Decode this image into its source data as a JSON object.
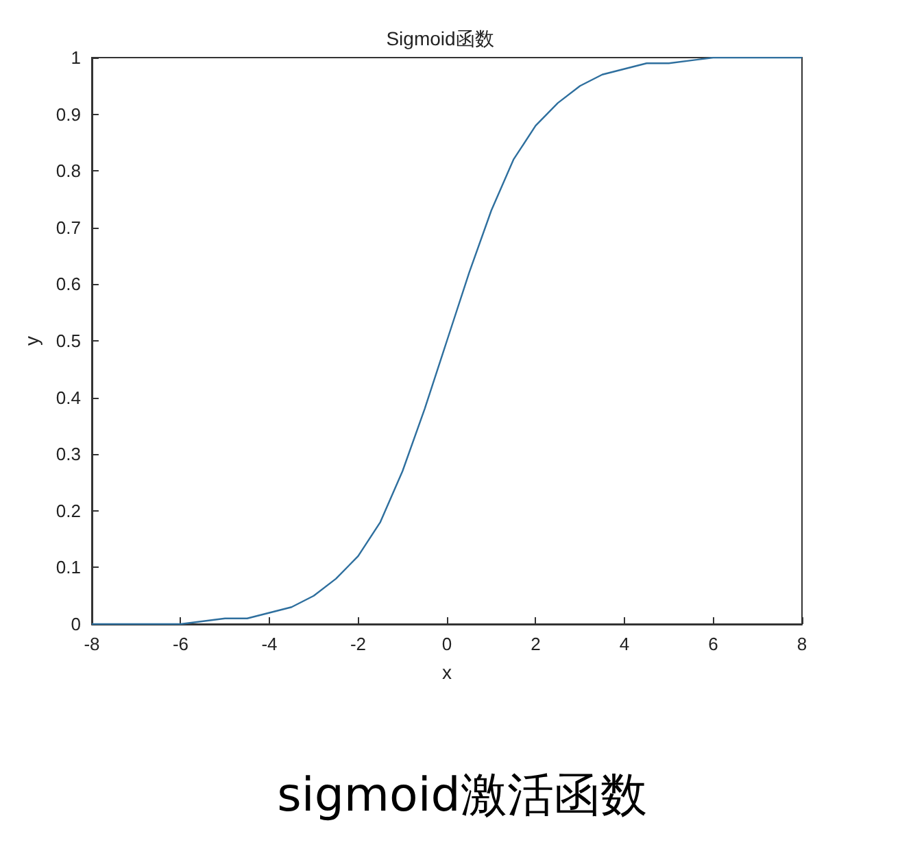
{
  "chart_data": {
    "type": "line",
    "title": "Sigmoid函数",
    "xlabel": "x",
    "ylabel": "y",
    "x": [
      -8,
      -7,
      -6,
      -5,
      -4.5,
      -4,
      -3.5,
      -3,
      -2.5,
      -2,
      -1.5,
      -1,
      -0.5,
      0,
      0.5,
      1,
      1.5,
      2,
      2.5,
      3,
      3.5,
      4,
      4.5,
      5,
      6,
      7,
      8
    ],
    "series": [
      {
        "color": "#2e6f9e",
        "values": [
          0.0,
          0.0,
          0.0,
          0.01,
          0.01,
          0.02,
          0.03,
          0.05,
          0.08,
          0.12,
          0.18,
          0.27,
          0.38,
          0.5,
          0.62,
          0.73,
          0.82,
          0.88,
          0.92,
          0.95,
          0.97,
          0.98,
          0.99,
          0.99,
          1.0,
          1.0,
          1.0
        ]
      }
    ],
    "xlim": [
      -8,
      8
    ],
    "xticks": [
      -8,
      -6,
      -4,
      -2,
      0,
      2,
      4,
      6,
      8
    ],
    "ylim": [
      0,
      1
    ],
    "yticks": [
      0,
      0.1,
      0.2,
      0.3,
      0.4,
      0.5,
      0.6,
      0.7,
      0.8,
      0.9,
      1
    ],
    "grid": false,
    "marker": "none",
    "line_style": "solid",
    "annotations": [
      "sigmoid激活函数"
    ]
  }
}
